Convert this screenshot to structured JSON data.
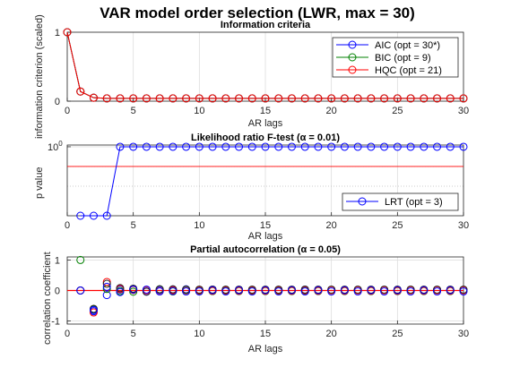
{
  "figure": {
    "title": "VAR model order selection (LWR, max = 30)"
  },
  "colors": {
    "aic": "#0000ff",
    "bic": "#008000",
    "hqc": "#ff0000",
    "lrt": "#0000ff",
    "alpha_line": "#ff0000",
    "grid": "#dcdcdc",
    "axis": "#262626"
  },
  "chart_data": [
    {
      "type": "line",
      "title": "Information criteria",
      "xlabel": "AR lags",
      "ylabel": "information criterion (scaled)",
      "xlim": [
        0,
        30
      ],
      "ylim": [
        0,
        1
      ],
      "xticks": [
        "0",
        "5",
        "10",
        "15",
        "20",
        "25",
        "30"
      ],
      "yticks": [
        "0",
        "1"
      ],
      "grid": true,
      "legend_position": "top-right",
      "x": [
        0,
        1,
        2,
        3,
        4,
        5,
        6,
        7,
        8,
        9,
        10,
        11,
        12,
        13,
        14,
        15,
        16,
        17,
        18,
        19,
        20,
        21,
        22,
        23,
        24,
        25,
        26,
        27,
        28,
        29,
        30
      ],
      "series": [
        {
          "name": "AIC (opt = 30*)",
          "color_key": "aic",
          "values": [
            1,
            0.14,
            0.05,
            0.04,
            0.04,
            0.04,
            0.04,
            0.04,
            0.04,
            0.04,
            0.04,
            0.04,
            0.04,
            0.04,
            0.04,
            0.04,
            0.04,
            0.04,
            0.04,
            0.04,
            0.04,
            0.04,
            0.04,
            0.04,
            0.04,
            0.04,
            0.04,
            0.04,
            0.04,
            0.04,
            0.04
          ]
        },
        {
          "name": "BIC (opt = 9)",
          "color_key": "bic",
          "values": [
            1,
            0.14,
            0.05,
            0.04,
            0.04,
            0.04,
            0.04,
            0.04,
            0.04,
            0.04,
            0.04,
            0.04,
            0.04,
            0.04,
            0.04,
            0.04,
            0.04,
            0.04,
            0.04,
            0.04,
            0.04,
            0.04,
            0.04,
            0.04,
            0.04,
            0.04,
            0.04,
            0.04,
            0.04,
            0.04,
            0.04
          ]
        },
        {
          "name": "HQC (opt = 21)",
          "color_key": "hqc",
          "values": [
            1,
            0.14,
            0.05,
            0.04,
            0.04,
            0.04,
            0.04,
            0.04,
            0.04,
            0.04,
            0.04,
            0.04,
            0.04,
            0.04,
            0.04,
            0.04,
            0.04,
            0.04,
            0.04,
            0.04,
            0.04,
            0.04,
            0.04,
            0.04,
            0.04,
            0.04,
            0.04,
            0.04,
            0.04,
            0.04,
            0.04
          ]
        }
      ]
    },
    {
      "type": "line",
      "title": "Likelihood ratio F-test (α = 0.01)",
      "xlabel": "AR lags",
      "ylabel": "p value",
      "xlim": [
        0,
        30
      ],
      "yscale": "log",
      "ylim": [
        1e-07,
        1.5
      ],
      "yticks": [
        "10^0"
      ],
      "xticks": [
        "0",
        "5",
        "10",
        "15",
        "20",
        "25",
        "30"
      ],
      "grid": true,
      "legend_position": "bottom-right",
      "alpha": 0.01,
      "x": [
        1,
        2,
        3,
        4,
        5,
        6,
        7,
        8,
        9,
        10,
        11,
        12,
        13,
        14,
        15,
        16,
        17,
        18,
        19,
        20,
        21,
        22,
        23,
        24,
        25,
        26,
        27,
        28,
        29,
        30
      ],
      "series": [
        {
          "name": "LRT (opt = 3)",
          "color_key": "lrt",
          "values": [
            1e-07,
            1e-07,
            1e-07,
            1,
            1,
            1,
            1,
            1,
            1,
            1,
            1,
            1,
            1,
            1,
            1,
            1,
            1,
            1,
            1,
            1,
            1,
            1,
            1,
            1,
            1,
            1,
            1,
            1,
            1,
            1
          ]
        }
      ]
    },
    {
      "type": "scatter",
      "title": "Partial autocorrelation (α = 0.05)",
      "xlabel": "AR lags",
      "ylabel": "correlation coefficient",
      "xlim": [
        0,
        30
      ],
      "ylim": [
        -1.1,
        1.1
      ],
      "xticks": [
        "0",
        "5",
        "10",
        "15",
        "20",
        "25",
        "30"
      ],
      "yticks": [
        "-1",
        "0",
        "1"
      ],
      "grid": true,
      "x": [
        1,
        2,
        3,
        4,
        5,
        6,
        7,
        8,
        9,
        10,
        11,
        12,
        13,
        14,
        15,
        16,
        17,
        18,
        19,
        20,
        21,
        22,
        23,
        24,
        25,
        26,
        27,
        28,
        29,
        30
      ],
      "series": [
        {
          "color_key": "aic",
          "values": [
            0,
            -0.68,
            -0.15,
            0.03,
            0.04,
            -0.03,
            0.02,
            0.03,
            0.04,
            0.02,
            0.03,
            0.02,
            0.02,
            0.02,
            0.02,
            0.02,
            0.02,
            0.03,
            0.02,
            0.02,
            0.02,
            0.02,
            0.02,
            0.02,
            0.02,
            0.02,
            0.02,
            0.02,
            0.02,
            0.02
          ]
        },
        {
          "color_key": "bic",
          "values": [
            1,
            -0.62,
            0.05,
            -0.02,
            -0.04,
            0.02,
            0.04,
            -0.03,
            0.02,
            -0.02,
            -0.02,
            -0.02,
            -0.02,
            -0.02,
            -0.02,
            -0.02,
            -0.02,
            -0.02,
            -0.02,
            0.02,
            -0.02,
            0.02,
            -0.02,
            0.02,
            -0.02,
            0.02,
            -0.02,
            0.02,
            -0.02,
            0.02
          ]
        },
        {
          "color_key": "hqc",
          "values": [
            0,
            -0.72,
            0.28,
            0.05,
            0.02,
            0.01,
            -0.02,
            0.01,
            -0.02,
            0.01,
            -0.01,
            0.01,
            -0.01,
            0.01,
            -0.01,
            0.01,
            -0.01,
            0.01,
            -0.01,
            0.01,
            -0.01,
            0.01,
            -0.01,
            0.01,
            -0.01,
            0.01,
            -0.01,
            0.01,
            -0.01,
            0.01
          ]
        },
        {
          "color_key": "axis",
          "values": [
            0,
            -0.6,
            0.22,
            0.08,
            0.06,
            -0.04,
            0.04,
            0.04,
            0.03,
            0.03,
            0.03,
            0.03,
            0.03,
            0.03,
            0.03,
            0.03,
            0.03,
            0.03,
            0.03,
            0.03,
            0.03,
            0.03,
            0.03,
            0.03,
            0.03,
            0.03,
            0.03,
            0.03,
            0.03,
            0.03
          ]
        },
        {
          "color_key": "aic",
          "values": [
            0,
            -0.64,
            0.12,
            -0.05,
            0.03,
            0.03,
            -0.03,
            -0.02,
            -0.03,
            -0.03,
            0.01,
            -0.03,
            0.01,
            -0.03,
            0.01,
            -0.03,
            0.01,
            -0.03,
            0.01,
            -0.03,
            0.01,
            -0.03,
            0.01,
            -0.03,
            0.01,
            -0.03,
            0.01,
            -0.03,
            0.01,
            -0.03
          ]
        }
      ]
    }
  ]
}
